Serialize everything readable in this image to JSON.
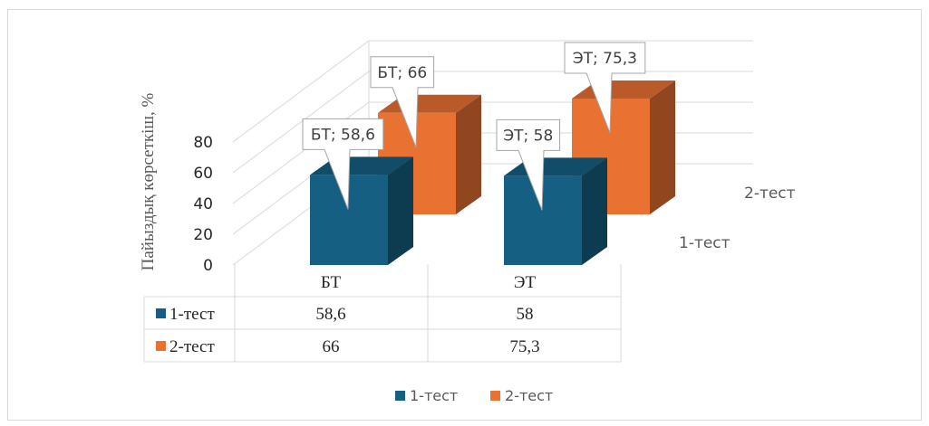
{
  "chart_data": {
    "type": "bar",
    "style": "3d-clustered",
    "ylabel": "Пайыздық көрсеткіш, %",
    "yticks": [
      "0",
      "20",
      "40",
      "60",
      "80"
    ],
    "ylim": [
      0,
      80
    ],
    "categories": [
      "БТ",
      "ЭТ"
    ],
    "depth_labels": [
      "1-тест",
      "2-тест"
    ],
    "grid": true,
    "legend_position": "bottom",
    "series": [
      {
        "name": "1-тест",
        "color": "#156082",
        "values": [
          58.6,
          58
        ],
        "display_values": [
          "58,6",
          "58"
        ],
        "callouts": [
          "БТ; 58,6",
          "ЭТ; 58"
        ]
      },
      {
        "name": "2-тест",
        "color": "#E97132",
        "values": [
          66,
          75.3
        ],
        "display_values": [
          "66",
          "75,3"
        ],
        "callouts": [
          "БТ; 66",
          "ЭТ; 75,3"
        ]
      }
    ],
    "data_table": true
  }
}
